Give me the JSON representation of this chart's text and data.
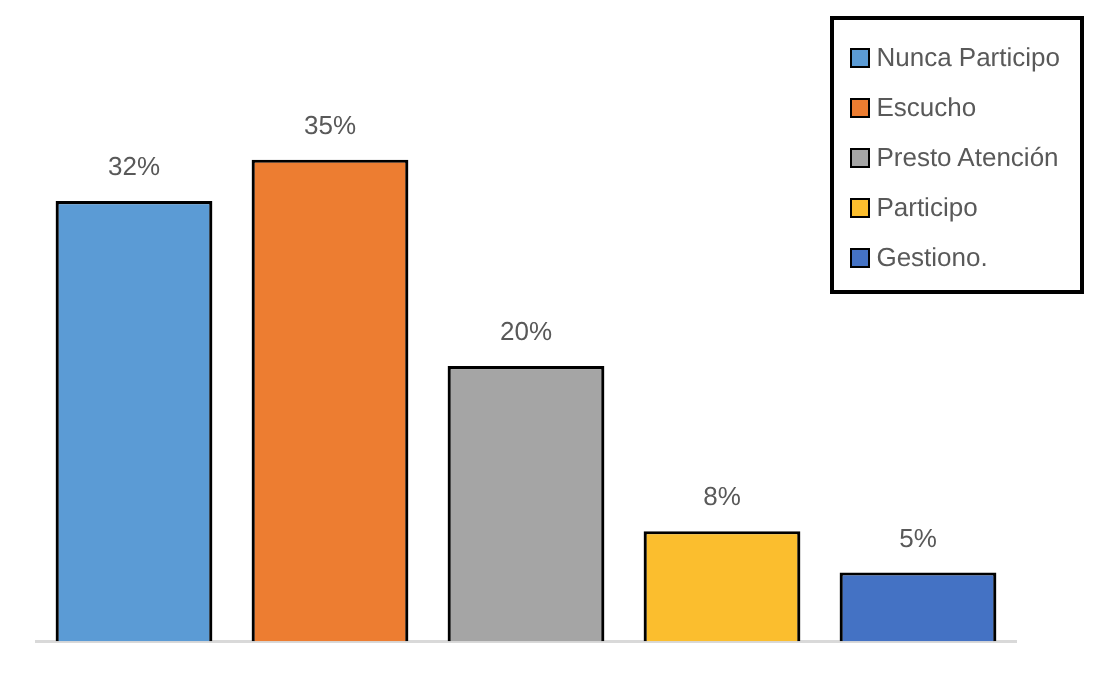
{
  "chart_data": {
    "type": "bar",
    "categories": [
      null,
      null,
      null,
      null,
      null
    ],
    "legend": "top right",
    "grid": false,
    "stacked": true,
    "series": [
      {
        "name": "Nunca Participo",
        "color": "#5b9bd5",
        "values": [
          32,
          null,
          null,
          null,
          null
        ],
        "value_labels": [
          "32%",
          null,
          null,
          null,
          null
        ]
      },
      {
        "name": "Escucho",
        "color": "#ed7d31",
        "values": [
          null,
          35,
          null,
          null,
          null
        ],
        "value_labels": [
          null,
          "35%",
          null,
          null,
          null
        ]
      },
      {
        "name": "Presto Atención",
        "color": "#a5a5a5",
        "values": [
          null,
          null,
          20,
          null,
          null
        ],
        "value_labels": [
          null,
          null,
          "20%",
          null,
          null
        ]
      },
      {
        "name": "Participo",
        "color": "#fbbe2e",
        "values": [
          null,
          null,
          null,
          8,
          null
        ],
        "value_labels": [
          null,
          null,
          null,
          "8%",
          null
        ]
      },
      {
        "name": "Gestiono.",
        "color": "#4472c4",
        "values": [
          null,
          null,
          null,
          null,
          5
        ],
        "value_labels": [
          null,
          null,
          null,
          null,
          "5%"
        ]
      }
    ]
  }
}
